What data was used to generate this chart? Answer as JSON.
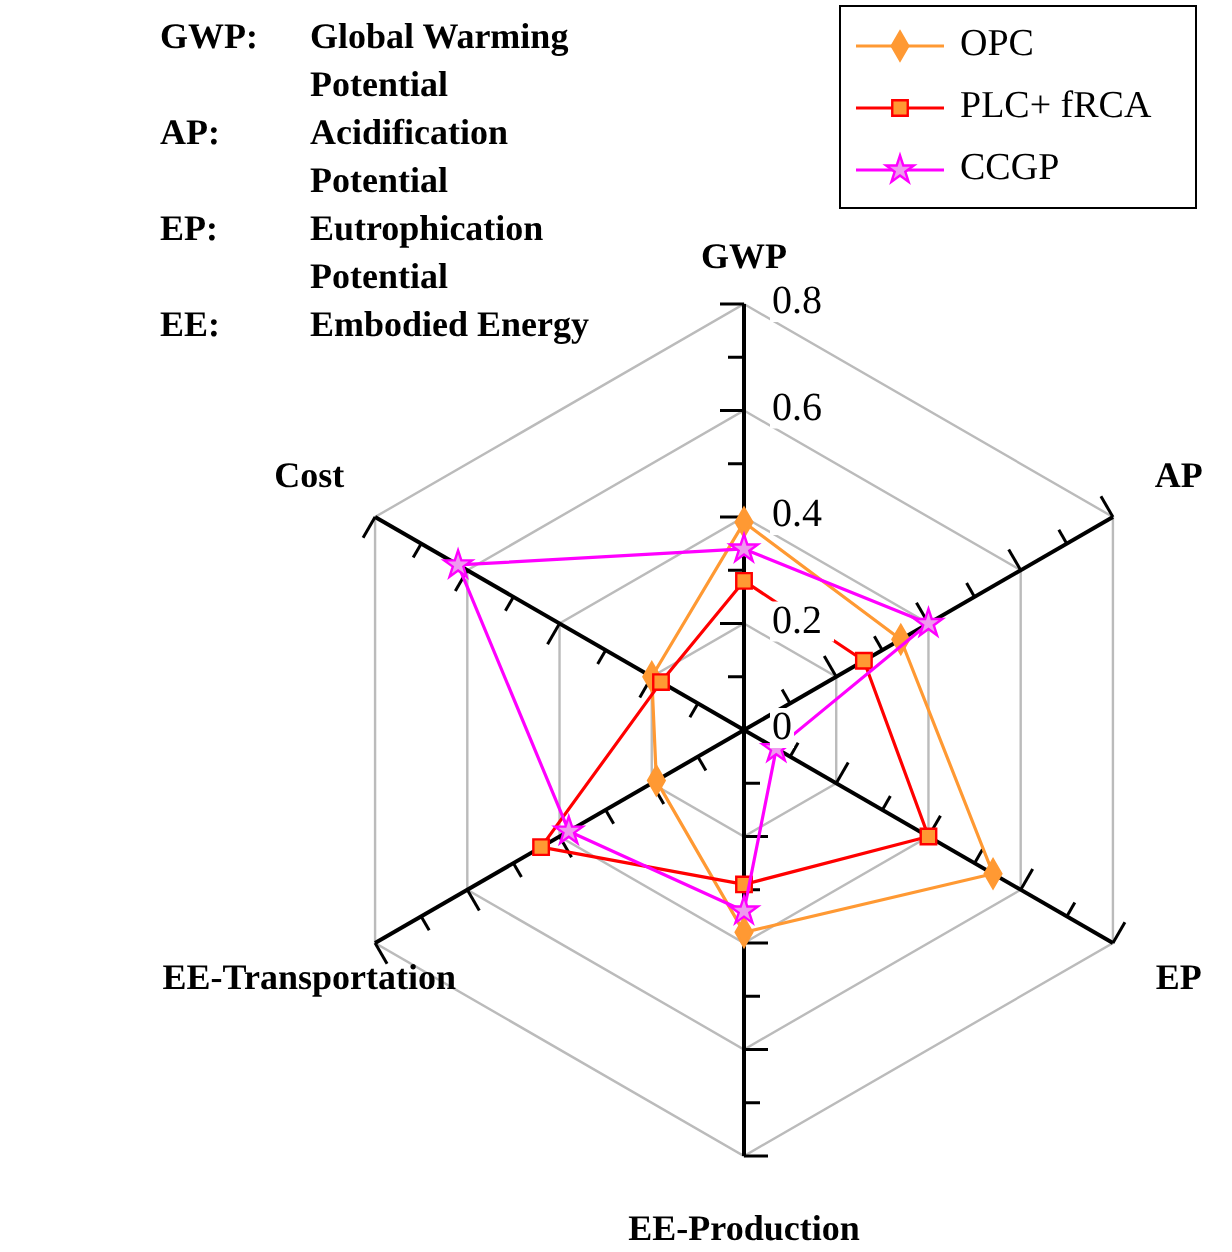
{
  "chart_data": {
    "type": "radar",
    "categories": [
      "GWP",
      "AP",
      "EP",
      "EE-Production",
      "EE-Transportation",
      "Cost"
    ],
    "series": [
      {
        "name": "OPC",
        "color": "#ff9933",
        "marker": "diamond",
        "values": [
          0.39,
          0.34,
          0.54,
          0.38,
          0.19,
          0.2
        ]
      },
      {
        "name": "PLC+ fRCA",
        "color": "#ff0000",
        "marker": "square",
        "values": [
          0.28,
          0.26,
          0.4,
          0.29,
          0.44,
          0.18
        ]
      },
      {
        "name": "CCGP",
        "color": "#ff00ff",
        "marker": "star",
        "values": [
          0.34,
          0.4,
          0.07,
          0.34,
          0.38,
          0.62
        ]
      }
    ],
    "ylim": [
      0,
      0.8
    ],
    "yticks": [
      0,
      0.2,
      0.4,
      0.6,
      0.8
    ],
    "grid": true,
    "legend": "top right",
    "line_style": "solid",
    "annotations": [
      "GWP: Global Warming Potential",
      "AP: Acidification Potential",
      "EP: Eutrophication Potential",
      "EE: Embodied Energy"
    ]
  }
}
